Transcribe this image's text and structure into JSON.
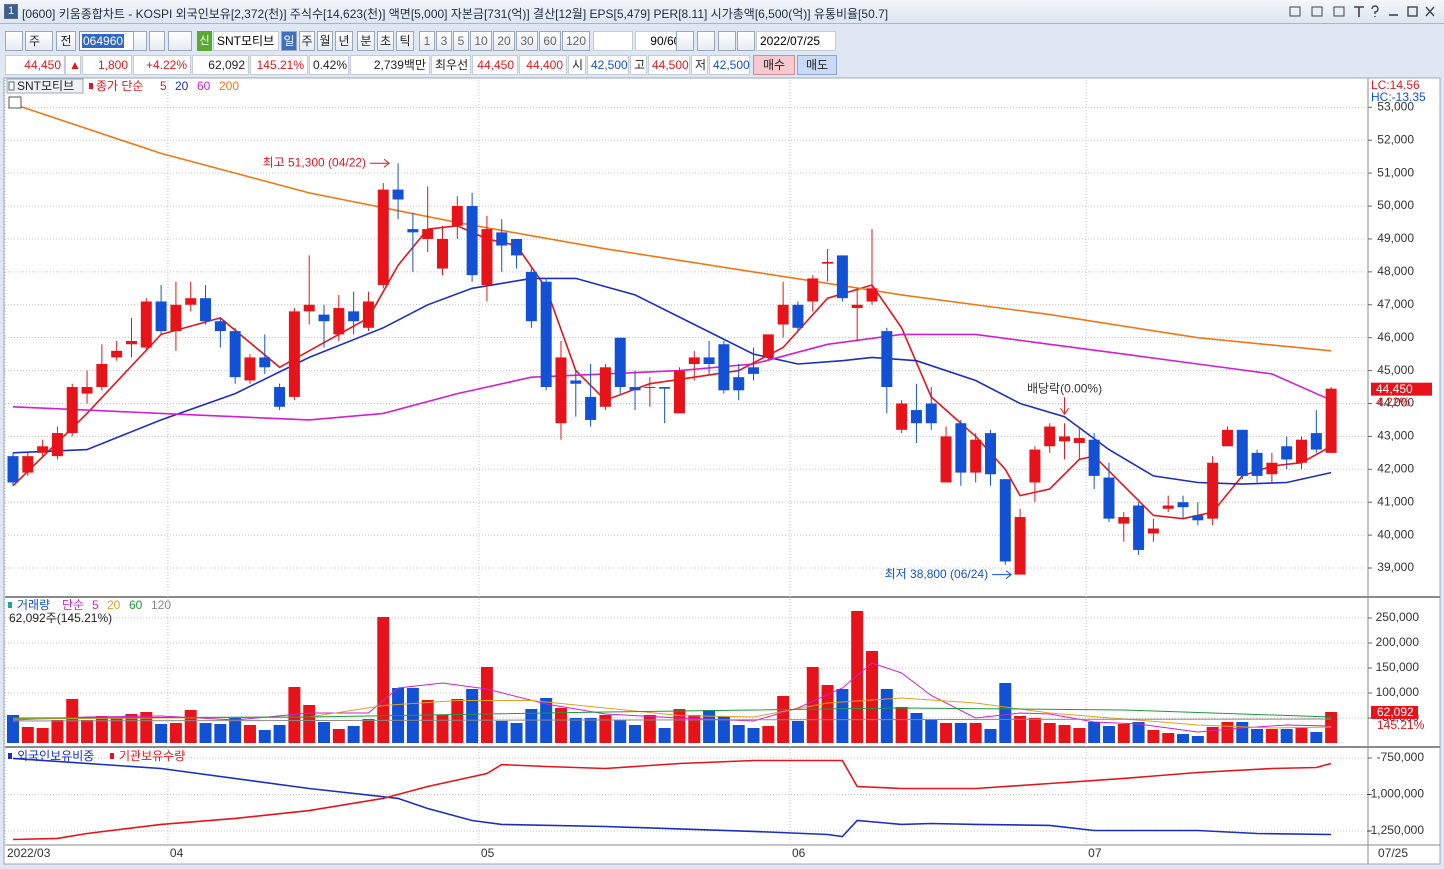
{
  "window": {
    "badge": "1",
    "title": "[0600] 키움종합차트 - KOSPI 외국인보유[2,372(천)] 주식수[14,623(천)] 액면[5,000] 자본금[731(억)] 결산[12월] EPS[5,479] PER[8.11] 시가총액[6,500(억)] 유통비율[50.7]"
  },
  "toolbar": {
    "period_label": "주",
    "prev_label": "전",
    "code": "064960",
    "name_badge": "신",
    "name": "SNT모티브",
    "periods": [
      "일",
      "주",
      "월",
      "년",
      "분",
      "초",
      "틱"
    ],
    "intervals": [
      "1",
      "3",
      "5",
      "10",
      "20",
      "30",
      "60",
      "120"
    ],
    "count": "90/600",
    "date": "2022/07/25"
  },
  "quote": {
    "price": "44,450",
    "arrow": "▲",
    "change": "1,800",
    "change_pct": "+4.22%",
    "volume": "62,092",
    "volume_ratio": "145.21%",
    "turnover": "0.42%",
    "amount": "2,739백만",
    "best_label": "최우선",
    "ask": "44,450",
    "bid": "44,400",
    "open_label": "시",
    "open": "42,500",
    "high_label": "고",
    "high": "44,500",
    "low_label": "저",
    "low": "42,500",
    "buy": "매수",
    "sell": "매도"
  },
  "chart_data": [
    {
      "type": "candlestick",
      "stock": "SNT모티브",
      "legend_prefix": "종가 단순",
      "up_color": "#e6141a",
      "down_color": "#1250d4",
      "xlim": [
        -0.54,
        91.49
      ],
      "xticks": [
        {
          "value": 0,
          "label": "2022/03"
        },
        {
          "value": 11,
          "label": "04"
        },
        {
          "value": 32,
          "label": "05"
        },
        {
          "value": 53,
          "label": "06"
        },
        {
          "value": 73,
          "label": "07"
        }
      ],
      "end_label": "07/25",
      "ylim": [
        38150,
        53830
      ],
      "yticks": [
        {
          "value": 39000,
          "label": "39,000"
        },
        {
          "value": 40000,
          "label": "40,000"
        },
        {
          "value": 41000,
          "label": "41,000"
        },
        {
          "value": 42000,
          "label": "42,000"
        },
        {
          "value": 43000,
          "label": "43,000"
        },
        {
          "value": 44000,
          "label": "44,000"
        },
        {
          "value": 45000,
          "label": "45,000"
        },
        {
          "value": 46000,
          "label": "46,000"
        },
        {
          "value": 47000,
          "label": "47,000"
        },
        {
          "value": 48000,
          "label": "48,000"
        },
        {
          "value": 49000,
          "label": "49,000"
        },
        {
          "value": 50000,
          "label": "50,000"
        },
        {
          "value": 51000,
          "label": "51,000"
        },
        {
          "value": 52000,
          "label": "52,000"
        },
        {
          "value": 53000,
          "label": "53,000"
        }
      ],
      "grid": true,
      "open": [
        42400,
        41900,
        42500,
        42400,
        43100,
        44300,
        44500,
        45400,
        45800,
        45700,
        47100,
        46200,
        47000,
        47200,
        46500,
        46200,
        44700,
        45400,
        44500,
        44200,
        46800,
        46700,
        46100,
        46800,
        46300,
        47600,
        50500,
        49300,
        49000,
        48100,
        49400,
        50000,
        47600,
        49200,
        49000,
        48000,
        47700,
        43400,
        44700,
        44200,
        43900,
        46000,
        44500,
        44500,
        44500,
        43700,
        45200,
        45400,
        45800,
        44800,
        45100,
        45400,
        46400,
        47000,
        47100,
        48250,
        48500,
        46900,
        47100,
        46200,
        43200,
        43800,
        44000,
        41600,
        43400,
        41900,
        43100,
        41700,
        38800,
        41600,
        42700,
        42850,
        42800,
        42900,
        41750,
        40350,
        40900,
        40050,
        40800,
        41000,
        40600,
        40500,
        42700,
        43200,
        42500,
        41850,
        42700,
        42200,
        43100,
        42500
      ],
      "high": [
        42500,
        42500,
        42900,
        43300,
        44600,
        45000,
        45800,
        45900,
        46600,
        47200,
        47600,
        47700,
        47700,
        47600,
        46600,
        46300,
        45500,
        46100,
        44600,
        46900,
        48500,
        47000,
        47300,
        47400,
        47400,
        50700,
        51300,
        49800,
        50600,
        49400,
        50300,
        50400,
        49700,
        49600,
        49000,
        48100,
        47800,
        45900,
        45000,
        45200,
        45200,
        46000,
        45000,
        44800,
        44500,
        45100,
        45600,
        45900,
        45900,
        45200,
        45700,
        46100,
        47700,
        47100,
        47900,
        48700,
        48500,
        47500,
        49300,
        46300,
        44100,
        44600,
        44500,
        43300,
        43500,
        43100,
        43200,
        41700,
        40800,
        42700,
        43400,
        43400,
        43300,
        43100,
        42200,
        40700,
        41000,
        40500,
        41200,
        41200,
        41000,
        42400,
        43300,
        43200,
        42600,
        42500,
        43000,
        43000,
        43800,
        44500
      ],
      "low": [
        41500,
        41800,
        42400,
        42300,
        43000,
        44000,
        44400,
        45300,
        45400,
        45600,
        46100,
        45600,
        46800,
        46400,
        45700,
        44600,
        44600,
        44900,
        43800,
        44100,
        46400,
        45700,
        45900,
        46100,
        46200,
        47500,
        49600,
        48000,
        48600,
        47900,
        49000,
        47700,
        47100,
        48000,
        48100,
        46300,
        44400,
        42900,
        43600,
        43300,
        43800,
        44300,
        43800,
        43900,
        43400,
        43700,
        44700,
        44900,
        44300,
        44100,
        44700,
        45300,
        46000,
        46200,
        46800,
        47700,
        47100,
        45900,
        47000,
        43700,
        43100,
        42800,
        43200,
        41600,
        41500,
        41600,
        41500,
        39100,
        38800,
        41000,
        42500,
        42300,
        42300,
        41400,
        40400,
        39800,
        39400,
        39800,
        40700,
        40500,
        40300,
        40300,
        42700,
        41700,
        41600,
        41600,
        42000,
        42000,
        42500,
        42500
      ],
      "close": [
        41600,
        42400,
        42700,
        43100,
        44500,
        44500,
        45200,
        45600,
        45900,
        47100,
        46200,
        47000,
        47200,
        46500,
        46200,
        44800,
        45400,
        45100,
        43900,
        46800,
        47000,
        46500,
        46900,
        46500,
        47100,
        50500,
        50200,
        49200,
        49300,
        49000,
        50000,
        47900,
        49300,
        48800,
        48500,
        46500,
        44500,
        45400,
        44600,
        43500,
        45100,
        44500,
        44400,
        44500,
        44450,
        45000,
        45400,
        45200,
        44400,
        44400,
        44900,
        46100,
        47000,
        46300,
        47800,
        48300,
        47200,
        47000,
        47500,
        44500,
        44000,
        43400,
        43400,
        43000,
        41900,
        42900,
        41850,
        39200,
        40550,
        42600,
        43300,
        43000,
        42950,
        41800,
        40500,
        40550,
        39550,
        40200,
        40900,
        40850,
        40450,
        42200,
        43200,
        41800,
        41800,
        42200,
        42300,
        42900,
        42600,
        44450
      ],
      "series": [
        {
          "name": "5",
          "color": "#e6141a",
          "x": [
            0,
            5,
            10,
            14,
            18,
            20,
            24,
            26,
            28,
            30,
            32,
            34,
            36,
            38,
            40,
            43,
            46,
            49,
            52,
            55,
            58,
            60,
            62,
            65,
            67,
            68,
            70,
            72,
            73,
            75,
            77,
            79,
            81,
            83,
            85,
            87,
            89
          ],
          "values": [
            41500,
            43700,
            46100,
            46600,
            45100,
            45600,
            46600,
            48200,
            49300,
            49400,
            49000,
            48800,
            47500,
            45000,
            44100,
            44600,
            44800,
            45000,
            45700,
            47200,
            47600,
            46300,
            44200,
            43000,
            42000,
            41200,
            41400,
            42300,
            42400,
            41500,
            40600,
            40500,
            40700,
            41800,
            42100,
            42200,
            42700
          ]
        },
        {
          "name": "20",
          "color": "#1a2fc0",
          "x": [
            0,
            5,
            10,
            15,
            20,
            25,
            28,
            31,
            35,
            38,
            42,
            46,
            50,
            53,
            56,
            58,
            61,
            65,
            68,
            71,
            74,
            77,
            80,
            83,
            86,
            89
          ],
          "values": [
            42500,
            42600,
            43500,
            44300,
            45400,
            46300,
            47000,
            47500,
            47800,
            47800,
            47300,
            46400,
            45500,
            45200,
            45300,
            45400,
            45300,
            44700,
            44000,
            43600,
            42600,
            41800,
            41600,
            41550,
            41600,
            41900
          ]
        },
        {
          "name": "60",
          "color": "#d21fd2",
          "x": [
            0,
            5,
            10,
            15,
            20,
            25,
            30,
            35,
            40,
            45,
            50,
            55,
            60,
            65,
            70,
            75,
            80,
            85,
            89
          ],
          "values": [
            43900,
            43800,
            43700,
            43600,
            43500,
            43700,
            44300,
            44800,
            44900,
            45000,
            45200,
            45800,
            46100,
            46100,
            45800,
            45500,
            45200,
            44900,
            44100
          ]
        },
        {
          "name": "200",
          "color": "#f07814",
          "x": [
            0,
            10,
            20,
            30,
            40,
            50,
            60,
            70,
            80,
            89
          ],
          "values": [
            53100,
            51600,
            50400,
            49500,
            48700,
            48000,
            47300,
            46700,
            46000,
            45600
          ]
        }
      ],
      "annotations": [
        {
          "text": "최고 51,300 (04/22)",
          "x": 26,
          "value": 51300,
          "color": "#e6141a"
        },
        {
          "text": "최저 38,800 (06/24)",
          "x": 68,
          "value": 38800,
          "color": "#1250d4"
        },
        {
          "text": "배당락(0.00%)",
          "x": 71,
          "color": "#333333"
        }
      ],
      "corner_labels": [
        {
          "text": "LC:14.56",
          "color": "#e6141a"
        },
        {
          "text": "HC:-13.35",
          "color": "#1250d4"
        }
      ],
      "price_tag": "44,450",
      "change_tag": "4.22%"
    },
    {
      "type": "bar",
      "legend_name": "거래량",
      "legend_prefix": "단순",
      "info": "62,092주(145.21%)",
      "ylim": [
        -6000,
        290000
      ],
      "yticks": [
        {
          "value": 50000,
          "label": "50,000"
        },
        {
          "value": 100000,
          "label": "100,000"
        },
        {
          "value": 150000,
          "label": "150,000"
        },
        {
          "value": 200000,
          "label": "200,000"
        },
        {
          "value": 250000,
          "label": "250,000"
        }
      ],
      "values": [
        56000,
        32000,
        30000,
        46000,
        88000,
        46000,
        54000,
        50000,
        58000,
        62000,
        38000,
        40000,
        66000,
        40000,
        38000,
        50000,
        36000,
        26000,
        36000,
        112000,
        76000,
        42000,
        28000,
        34000,
        48000,
        252000,
        110000,
        110000,
        86000,
        56000,
        88000,
        108000,
        152000,
        44000,
        40000,
        68000,
        90000,
        70000,
        50000,
        50000,
        56000,
        46000,
        36000,
        56000,
        30000,
        68000,
        56000,
        66000,
        54000,
        36000,
        30000,
        34000,
        94000,
        44000,
        152000,
        116000,
        108000,
        264000,
        184000,
        108000,
        72000,
        60000,
        46000,
        40000,
        40000,
        40000,
        28000,
        120000,
        54000,
        50000,
        40000,
        36000,
        30000,
        42000,
        34000,
        38000,
        42000,
        26000,
        20000,
        18000,
        14000,
        32000,
        42000,
        42000,
        28000,
        28000,
        28000,
        30000,
        22000,
        62092
      ],
      "series": [
        {
          "name": "5",
          "color": "#d21fd2",
          "x": [
            0,
            5,
            10,
            15,
            20,
            24,
            26,
            29,
            32,
            36,
            40,
            45,
            50,
            53,
            56,
            58,
            60,
            62,
            65,
            68,
            70,
            73,
            76,
            80,
            83,
            86,
            89
          ],
          "values": [
            46000,
            52000,
            54000,
            46000,
            60000,
            60000,
            110000,
            120000,
            108000,
            78000,
            58000,
            50000,
            44000,
            70000,
            110000,
            160000,
            140000,
            95000,
            50000,
            60000,
            58000,
            42000,
            38000,
            22000,
            30000,
            36000,
            34000
          ]
        },
        {
          "name": "20",
          "color": "#e0a020",
          "x": [
            0,
            10,
            20,
            25,
            30,
            35,
            40,
            45,
            50,
            55,
            60,
            65,
            70,
            75,
            80,
            85,
            89
          ],
          "values": [
            48000,
            50000,
            52000,
            75000,
            85000,
            85000,
            70000,
            55000,
            52000,
            80000,
            90000,
            80000,
            60000,
            48000,
            36000,
            30000,
            32000
          ]
        },
        {
          "name": "60",
          "color": "#1f9a3a",
          "x": [
            0,
            20,
            40,
            60,
            75,
            89
          ],
          "values": [
            50000,
            52000,
            62000,
            70000,
            66000,
            52000
          ]
        },
        {
          "name": "120",
          "color": "#8a8a8a",
          "x": [
            0,
            40,
            89
          ],
          "values": [
            44000,
            46000,
            48000
          ]
        }
      ],
      "volume_tag": "62,092",
      "ratio_tag": "145.21%"
    },
    {
      "type": "line",
      "ylim": [
        -1346000,
        -681500
      ],
      "yticks": [
        {
          "value": -750000,
          "label": "-750,000"
        },
        {
          "value": -1000000,
          "label": "-1,000,000"
        },
        {
          "value": -1250000,
          "label": "-1,250,000"
        }
      ],
      "series": [
        {
          "name": "외국인보유비중",
          "color": "#1a2fc0",
          "x": [
            0,
            10,
            20,
            26,
            28,
            31,
            33,
            40,
            50,
            55,
            56,
            57,
            60,
            62,
            65,
            70,
            73,
            80,
            84,
            89
          ],
          "values": [
            -753000,
            -822000,
            -959000,
            -1027000,
            -1096000,
            -1178000,
            -1205000,
            -1219000,
            -1253000,
            -1274000,
            -1288000,
            -1178000,
            -1205000,
            -1199000,
            -1205000,
            -1212000,
            -1247000,
            -1247000,
            -1267000,
            -1274000
          ]
        },
        {
          "name": "기관보유수량",
          "color": "#e6141a",
          "x": [
            0,
            3,
            5,
            10,
            15,
            20,
            25,
            28,
            32,
            33,
            36,
            40,
            45,
            50,
            56,
            57,
            60,
            65,
            70,
            75,
            80,
            85,
            88,
            89
          ],
          "values": [
            -1308000,
            -1301000,
            -1267000,
            -1205000,
            -1164000,
            -1110000,
            -1027000,
            -945000,
            -856000,
            -795000,
            -808000,
            -822000,
            -788000,
            -767000,
            -767000,
            -945000,
            -959000,
            -959000,
            -925000,
            -890000,
            -849000,
            -822000,
            -815000,
            -788000
          ]
        }
      ]
    }
  ]
}
